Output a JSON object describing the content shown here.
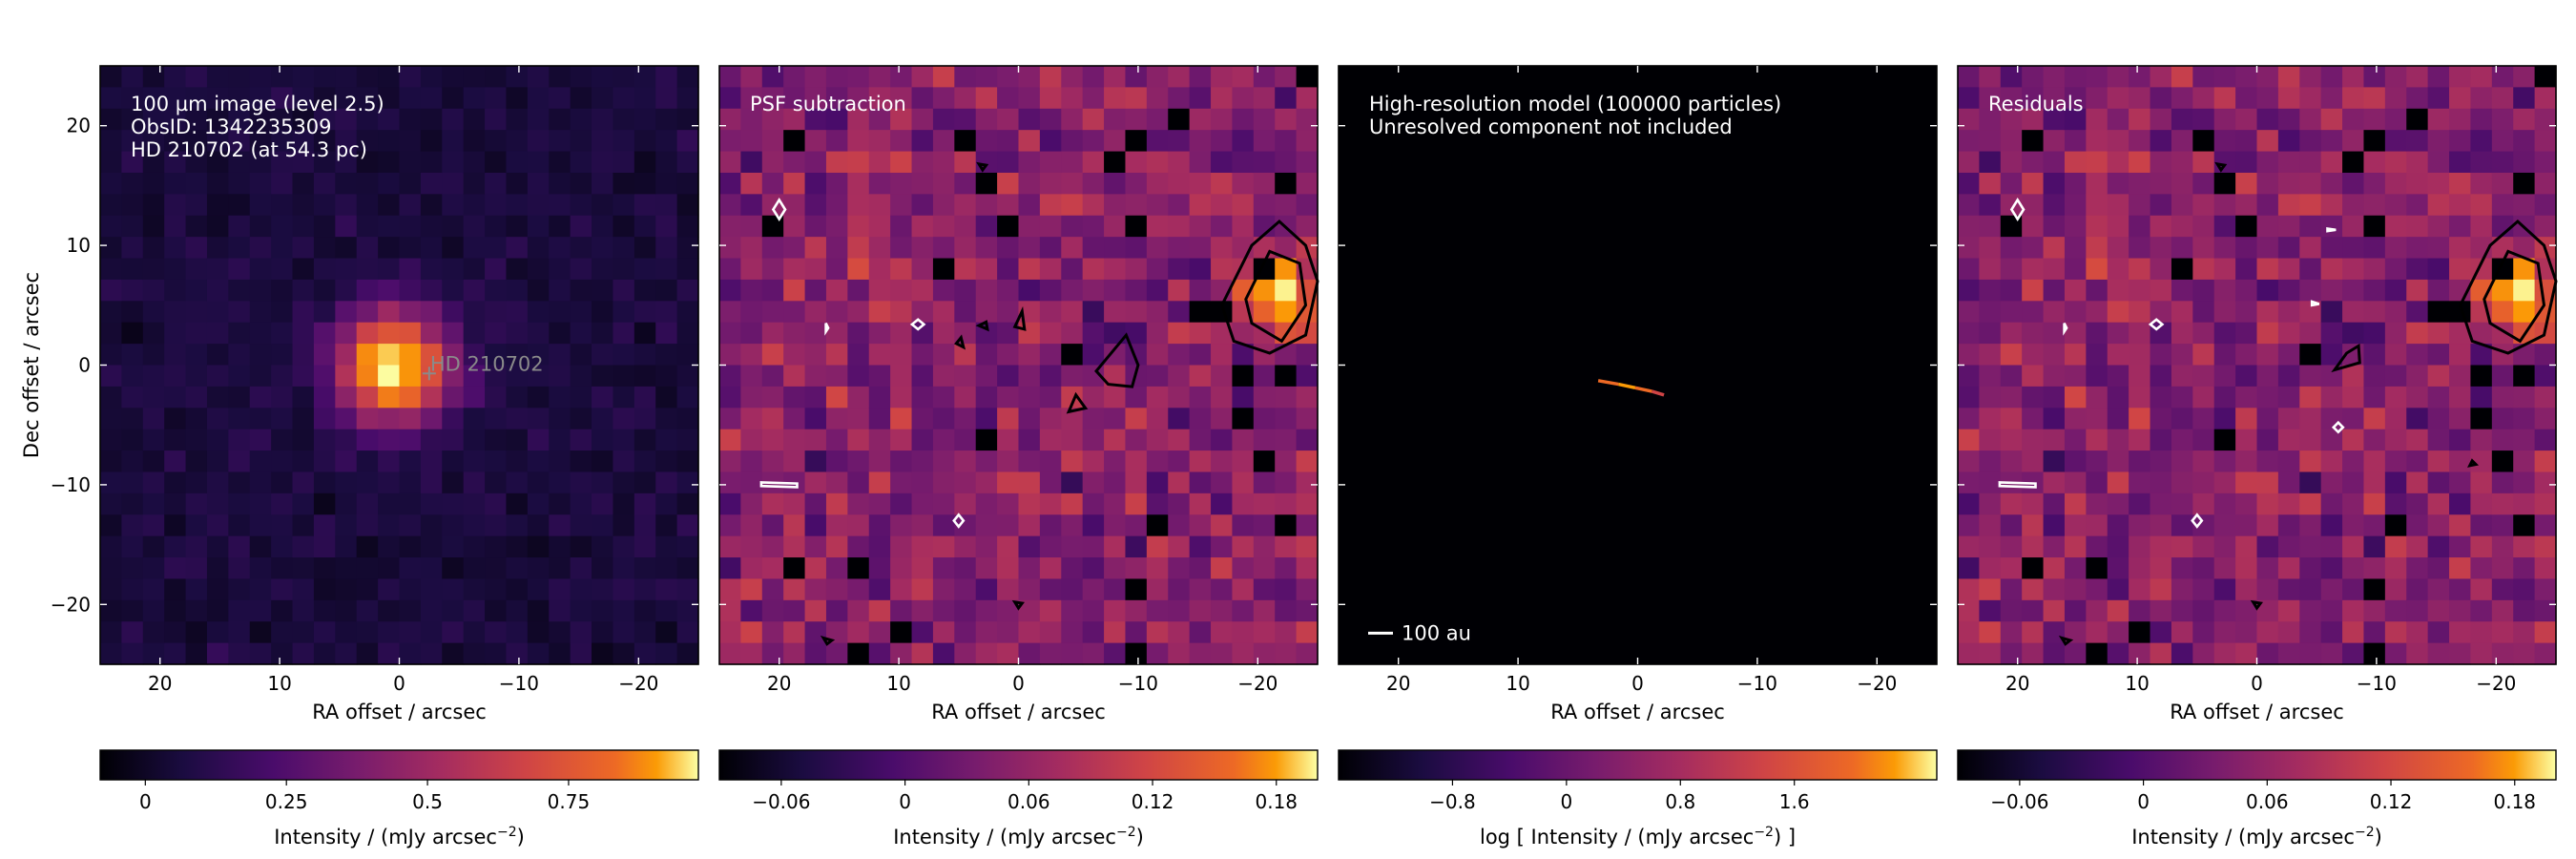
{
  "chart_data": [
    {
      "type": "heatmap",
      "panel": "observation",
      "annotations": [
        "100 µm image (level 2.5)",
        "ObsID: 1342235309",
        "HD 210702 (at 54.3 pc)"
      ],
      "source_label": "HD 210702",
      "xlabel": "RA offset / arcsec",
      "ylabel": "Dec offset / arcsec",
      "xlim": [
        25,
        -25
      ],
      "ylim": [
        -25,
        25
      ],
      "x_ticks": [
        20,
        10,
        0,
        -10,
        -20
      ],
      "y_ticks": [
        20,
        10,
        0,
        -10,
        -20
      ],
      "colorbar": {
        "label_parts": [
          "Intensity / (mJy arcsec",
          "−2",
          ")"
        ],
        "range": [
          -0.08,
          0.98
        ],
        "ticks": [
          0,
          0.25,
          0.5,
          0.75
        ],
        "tick_labels": [
          "0",
          "0.25",
          "0.5",
          "0.75"
        ]
      },
      "colormap": "inferno"
    },
    {
      "type": "heatmap",
      "panel": "psf-subtraction",
      "annotations": [
        "PSF subtraction"
      ],
      "xlabel": "RA offset / arcsec",
      "xlim": [
        25,
        -25
      ],
      "ylim": [
        -25,
        25
      ],
      "x_ticks": [
        20,
        10,
        0,
        -10,
        -20
      ],
      "colorbar": {
        "label_parts": [
          "Intensity / (mJy arcsec",
          "−2",
          ")"
        ],
        "range": [
          -0.09,
          0.2
        ],
        "ticks": [
          -0.06,
          0,
          0.06,
          0.12,
          0.18
        ],
        "tick_labels": [
          "−0.06",
          "0",
          "0.06",
          "0.12",
          "0.18"
        ]
      },
      "colormap": "inferno"
    },
    {
      "type": "heatmap",
      "panel": "model",
      "annotations": [
        "High-resolution model (100000 particles)",
        "Unresolved component not included"
      ],
      "scalebar_label": "100 au",
      "xlabel": "RA offset / arcsec",
      "xlim": [
        25,
        -25
      ],
      "ylim": [
        -25,
        25
      ],
      "x_ticks": [
        20,
        10,
        0,
        -10,
        -20
      ],
      "colorbar": {
        "label_parts": [
          "log [ Intensity / (mJy arcsec",
          "−2",
          ") ]"
        ],
        "range": [
          -1.6,
          2.6
        ],
        "ticks": [
          -0.8,
          0,
          0.8,
          1.6
        ],
        "tick_labels": [
          "−0.8",
          "0",
          "0.8",
          "1.6"
        ]
      },
      "colormap": "inferno"
    },
    {
      "type": "heatmap",
      "panel": "residuals",
      "annotations": [
        "Residuals"
      ],
      "xlabel": "RA offset / arcsec",
      "xlim": [
        25,
        -25
      ],
      "ylim": [
        -25,
        25
      ],
      "x_ticks": [
        20,
        10,
        0,
        -10,
        -20
      ],
      "colorbar": {
        "label_parts": [
          "Intensity / (mJy arcsec",
          "−2",
          ")"
        ],
        "range": [
          -0.09,
          0.2
        ],
        "ticks": [
          -0.06,
          0,
          0.06,
          0.12,
          0.18
        ],
        "tick_labels": [
          "−0.06",
          "0",
          "0.06",
          "0.12",
          "0.18"
        ]
      },
      "colormap": "inferno"
    }
  ]
}
